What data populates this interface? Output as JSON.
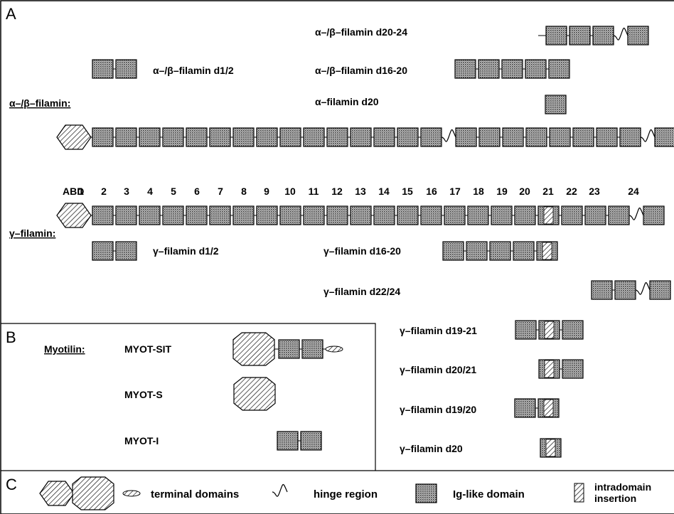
{
  "panels": {
    "a": "A",
    "b": "B",
    "c": "C"
  },
  "groups": {
    "alpha_beta": "α–/β–filamin:",
    "gamma": "γ–filamin:",
    "myotilin": "Myotilin:"
  },
  "fragments": {
    "ab_d20_24": "α–/β–filamin d20-24",
    "ab_d1_2": "α–/β–filamin d1/2",
    "ab_d16_20": "α–/β–filamin d16-20",
    "a_d20": "α–filamin d20",
    "g_d1_2": "γ–filamin d1/2",
    "g_d16_20": "γ–filamin d16-20",
    "g_d22_24": "γ–filamin d22/24",
    "g_d19_21": "γ–filamin d19-21",
    "g_d20_21": "γ–filamin d20/21",
    "g_d19_20": "γ–filamin d19/20",
    "g_d20": "γ–filamin d20"
  },
  "domain_numbers": {
    "abd": "ABD",
    "n": [
      "1",
      "2",
      "3",
      "4",
      "5",
      "6",
      "7",
      "8",
      "9",
      "10",
      "11",
      "12",
      "13",
      "14",
      "15",
      "16",
      "17",
      "18",
      "19",
      "20",
      "21",
      "22",
      "23",
      "24"
    ]
  },
  "myotilin_constructs": [
    "MYOT-SIT",
    "MYOT-S",
    "MYOT-I"
  ],
  "legend": {
    "terminal": "terminal domains",
    "hinge": "hinge region",
    "ig": "Ig-like domain",
    "insertion_1": "intradomain",
    "insertion_2": "insertion"
  }
}
